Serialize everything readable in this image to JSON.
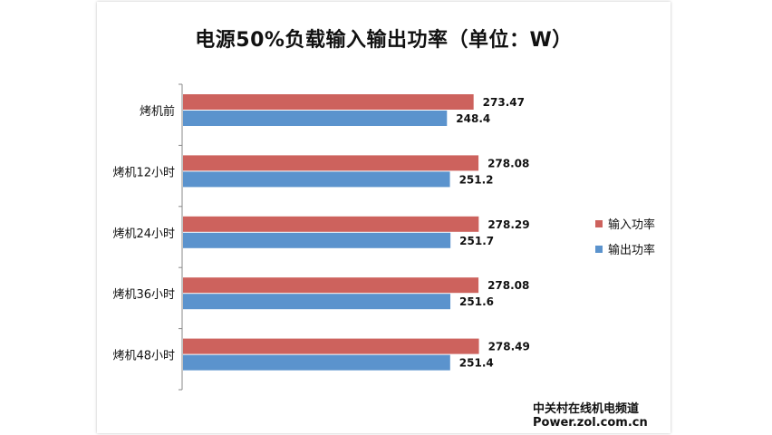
{
  "chart_data": {
    "type": "bar",
    "orientation": "horizontal",
    "title": "电源50%负载输入输出功率（单位：W）",
    "categories": [
      "烤机前",
      "烤机12小时",
      "烤机24小时",
      "烤机36小时",
      "烤机48小时"
    ],
    "series": [
      {
        "name": "输入功率",
        "color": "#cd625d",
        "values": [
          273.47,
          278.08,
          278.29,
          278.08,
          278.49
        ],
        "labels": [
          "273.47",
          "278.08",
          "278.29",
          "278.08",
          "278.49"
        ]
      },
      {
        "name": "输出功率",
        "color": "#5b93cd",
        "values": [
          248.4,
          251.2,
          251.7,
          251.6,
          251.4
        ],
        "labels": [
          "248.4",
          "251.2",
          "251.7",
          "251.6",
          "251.4"
        ]
      }
    ],
    "xlabel": "",
    "ylabel": "",
    "xlim": [
      0,
      350
    ],
    "grid": false,
    "legend_position": "right"
  },
  "source": {
    "line1": "中关村在线机电频道",
    "line2": "Power.zol.com.cn"
  }
}
